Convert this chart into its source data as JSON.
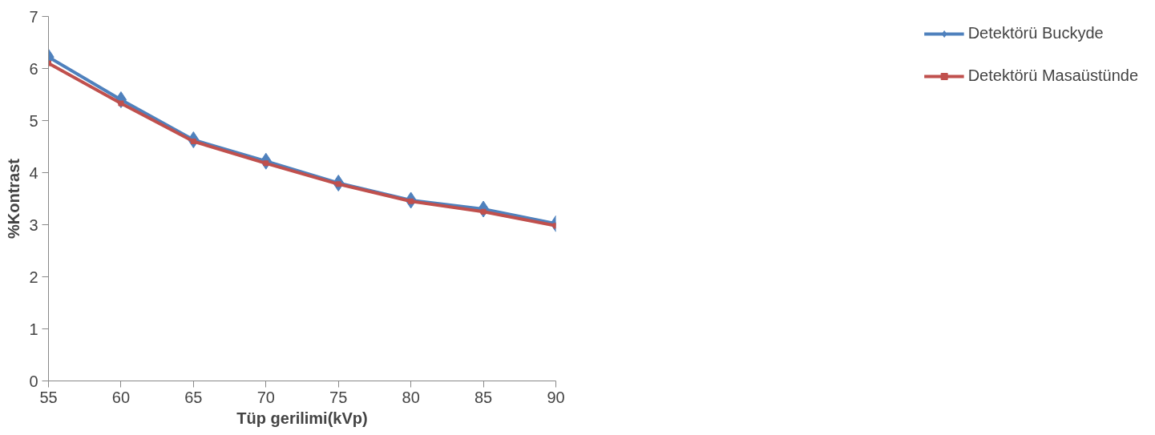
{
  "chart_data": {
    "type": "line",
    "xlabel": "Tüp gerilimi(kVp)",
    "ylabel": "%Kontrast",
    "x": [
      55,
      60,
      65,
      70,
      75,
      80,
      85,
      90
    ],
    "series": [
      {
        "name": "Detektörü Buckyde",
        "color": "#4f81bd",
        "marker": "diamond",
        "values": [
          6.22,
          5.4,
          4.63,
          4.22,
          3.8,
          3.47,
          3.3,
          3.02
        ]
      },
      {
        "name": "Detektörü Masaüstünde",
        "color": "#c0504d",
        "marker": "square",
        "values": [
          6.1,
          5.33,
          4.6,
          4.18,
          3.78,
          3.45,
          3.25,
          2.98
        ]
      }
    ],
    "xlim": [
      55,
      90
    ],
    "xticks": [
      55,
      60,
      65,
      70,
      75,
      80,
      85,
      90
    ],
    "ylim": [
      0,
      7
    ],
    "yticks": [
      0,
      1,
      2,
      3,
      4,
      5,
      6,
      7
    ],
    "grid": false,
    "legend": "right",
    "line_style": "solid"
  }
}
